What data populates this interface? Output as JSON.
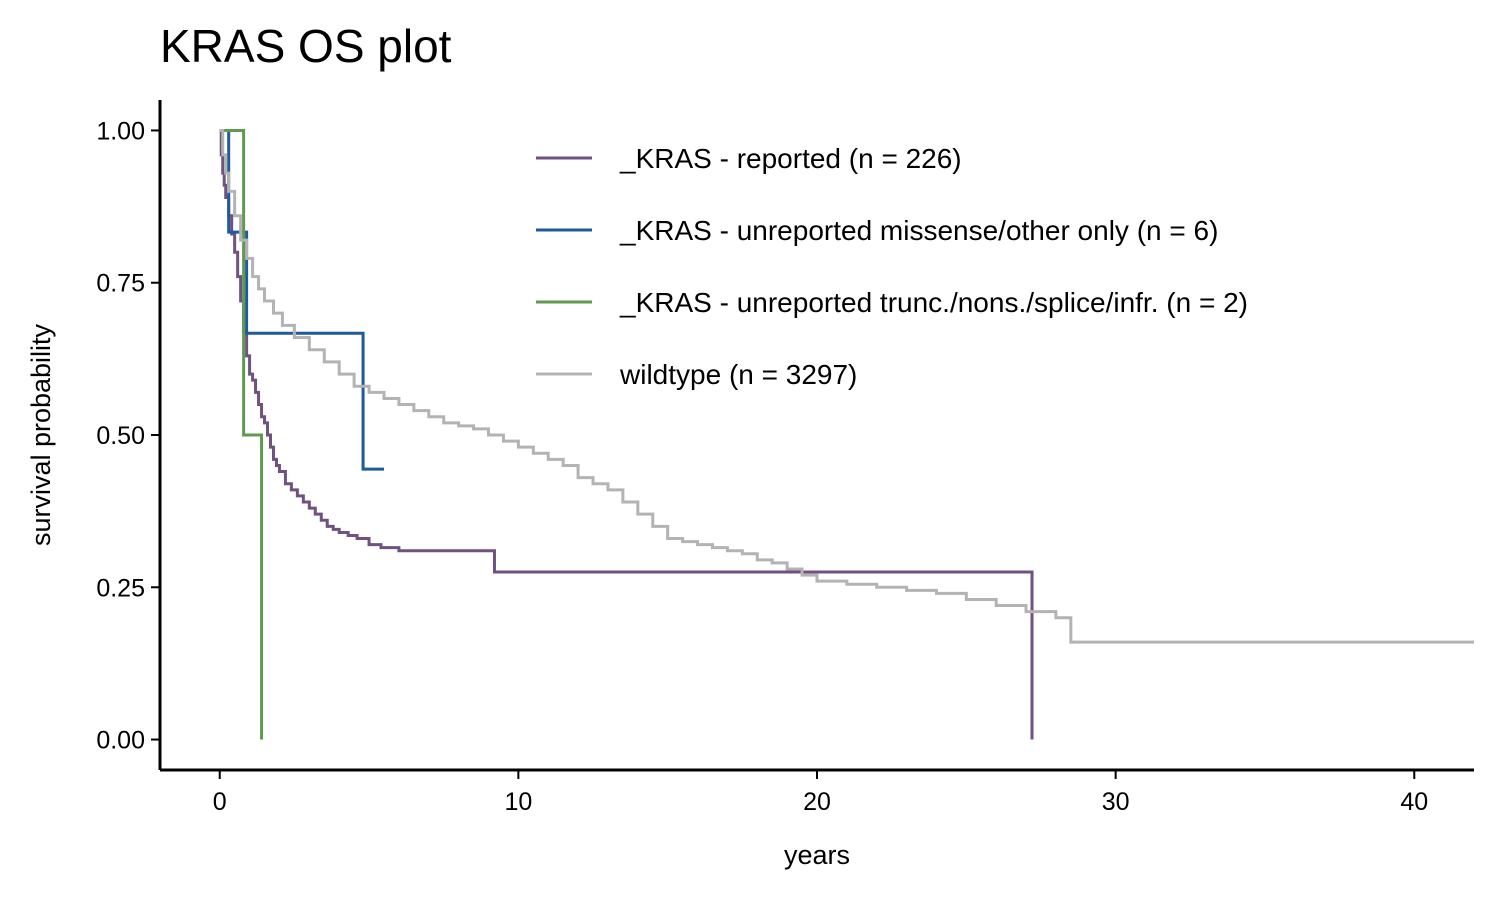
{
  "chart_data": {
    "type": "line",
    "subtype": "kaplan-meier step",
    "title": "KRAS OS plot",
    "xlabel": "years",
    "ylabel": "survival probability",
    "xlim": [
      -2,
      42
    ],
    "ylim": [
      -0.05,
      1.05
    ],
    "x_ticks": [
      0,
      10,
      20,
      30,
      40
    ],
    "x_tick_labels": [
      "0",
      "10",
      "20",
      "30",
      "40"
    ],
    "y_ticks": [
      0,
      0.25,
      0.5,
      0.75,
      1.0
    ],
    "y_tick_labels": [
      "0.00",
      "0.25",
      "0.50",
      "0.75",
      "1.00"
    ],
    "grid": false,
    "legend_position": "top-right",
    "series": [
      {
        "name": "_KRAS - reported (n = 226)",
        "color": "#6f5281",
        "x": [
          0,
          0.05,
          0.1,
          0.15,
          0.2,
          0.3,
          0.4,
          0.5,
          0.6,
          0.7,
          0.8,
          0.9,
          1.0,
          1.1,
          1.2,
          1.3,
          1.4,
          1.5,
          1.6,
          1.7,
          1.8,
          1.9,
          2.0,
          2.2,
          2.4,
          2.6,
          2.8,
          3.0,
          3.2,
          3.4,
          3.6,
          3.8,
          4.0,
          4.3,
          4.6,
          5.0,
          5.4,
          6.0,
          7.0,
          8.0,
          9.2,
          12.0,
          16.0,
          20.0,
          24.0,
          27.2,
          27.2
        ],
        "y": [
          1.0,
          0.96,
          0.93,
          0.91,
          0.89,
          0.86,
          0.83,
          0.8,
          0.76,
          0.72,
          0.67,
          0.63,
          0.6,
          0.59,
          0.57,
          0.55,
          0.53,
          0.52,
          0.5,
          0.48,
          0.46,
          0.45,
          0.44,
          0.42,
          0.41,
          0.4,
          0.39,
          0.38,
          0.37,
          0.36,
          0.35,
          0.345,
          0.34,
          0.335,
          0.33,
          0.32,
          0.315,
          0.31,
          0.31,
          0.31,
          0.275,
          0.275,
          0.275,
          0.275,
          0.275,
          0.275,
          0.0
        ]
      },
      {
        "name": "_KRAS - unreported missense/other only (n = 6)",
        "color": "#1f5a9c",
        "x": [
          0,
          0.3,
          0.9,
          4.8,
          5.5
        ],
        "y": [
          1.0,
          0.833,
          0.667,
          0.444,
          0.444
        ]
      },
      {
        "name": "_KRAS - unreported trunc./nons./splice/infr. (n = 2)",
        "color": "#5f9a4e",
        "x": [
          0,
          0.8,
          1.4,
          1.4
        ],
        "y": [
          1.0,
          0.5,
          0.5,
          0.0
        ]
      },
      {
        "name": "wildtype (n = 3297)",
        "color": "#b3b3b3",
        "x": [
          0,
          0.1,
          0.2,
          0.3,
          0.5,
          0.7,
          0.9,
          1.1,
          1.3,
          1.5,
          1.8,
          2.1,
          2.5,
          3.0,
          3.5,
          4.0,
          4.5,
          5.0,
          5.5,
          6.0,
          6.5,
          7.0,
          7.5,
          8.0,
          8.5,
          9.0,
          9.5,
          10.0,
          10.5,
          11.0,
          11.5,
          12.0,
          12.5,
          13.0,
          13.5,
          14.0,
          14.5,
          15.0,
          15.5,
          16.0,
          16.5,
          17.0,
          17.5,
          18.0,
          18.5,
          19.0,
          19.5,
          20.0,
          21.0,
          22.0,
          23.0,
          24.0,
          25.0,
          26.0,
          27.0,
          28.0,
          28.5,
          30.0,
          42.0
        ],
        "y": [
          1.0,
          0.96,
          0.93,
          0.9,
          0.86,
          0.82,
          0.79,
          0.76,
          0.74,
          0.72,
          0.7,
          0.68,
          0.66,
          0.64,
          0.62,
          0.6,
          0.58,
          0.57,
          0.56,
          0.55,
          0.54,
          0.53,
          0.52,
          0.515,
          0.51,
          0.5,
          0.49,
          0.48,
          0.47,
          0.46,
          0.45,
          0.43,
          0.42,
          0.41,
          0.39,
          0.37,
          0.35,
          0.33,
          0.325,
          0.32,
          0.315,
          0.31,
          0.305,
          0.295,
          0.29,
          0.28,
          0.27,
          0.26,
          0.255,
          0.25,
          0.245,
          0.24,
          0.23,
          0.22,
          0.21,
          0.2,
          0.16,
          0.16,
          0.16
        ]
      }
    ]
  }
}
